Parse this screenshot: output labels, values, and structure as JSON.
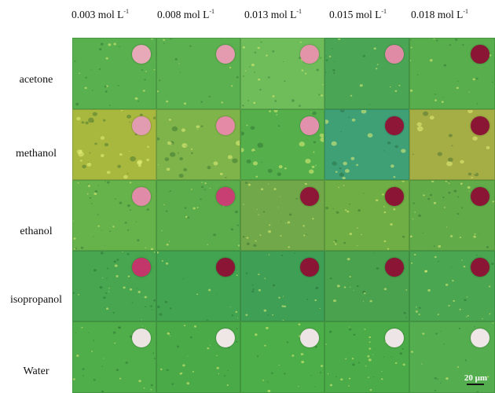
{
  "columns": [
    {
      "value": "0.003 mol L",
      "sup": "-1"
    },
    {
      "value": "0.008 mol L",
      "sup": "-1"
    },
    {
      "value": "0.013 mol L",
      "sup": "-1"
    },
    {
      "value": "0.015 mol L",
      "sup": "-1"
    },
    {
      "value": "0.018 mol L",
      "sup": "-1"
    }
  ],
  "rows": [
    "acetone",
    "methanol",
    "ethanol",
    "isopropanol",
    "Water"
  ],
  "scalebar_label": "20 μm",
  "colors": {
    "micrograph_green": "#4fae4a",
    "droplet_pale_pink": "#e2a3b4",
    "droplet_pink": "#d8577f",
    "droplet_dark_maroon": "#8a1534",
    "droplet_white": "#ece4e4"
  },
  "droplet_colors": [
    [
      "#e7a9b7",
      "#e49bb0",
      "#e394a9",
      "#e08ba6",
      "#8a1534"
    ],
    [
      "#e29cb2",
      "#e48aa6",
      "#e291ad",
      "#8e1738",
      "#8a1534"
    ],
    [
      "#e08ba8",
      "#c73f73",
      "#8e1738",
      "#8a1534",
      "#8a1534"
    ],
    [
      "#c23669",
      "#8a1534",
      "#8a1534",
      "#8a1534",
      "#8a1534"
    ],
    [
      "#ece3e3",
      "#efe6e6",
      "#ede5e5",
      "#eee6e6",
      "#efe7e7"
    ]
  ],
  "cell_tints": [
    [
      "#58b04e",
      "#5bb14f",
      "#6fbd5a",
      "#4aa654",
      "#58ae4c"
    ],
    [
      "#a8b83f",
      "#7fb44a",
      "#55b04c",
      "#3fa076",
      "#a5ad45"
    ],
    [
      "#66b34c",
      "#5bad4b",
      "#71a849",
      "#6fae44",
      "#62ab49"
    ],
    [
      "#47a64f",
      "#42a450",
      "#3f9f55",
      "#4aa24e",
      "#4aa650"
    ],
    [
      "#4fae4a",
      "#4aaa48",
      "#4cae49",
      "#4aab48",
      "#54ae4f"
    ]
  ]
}
